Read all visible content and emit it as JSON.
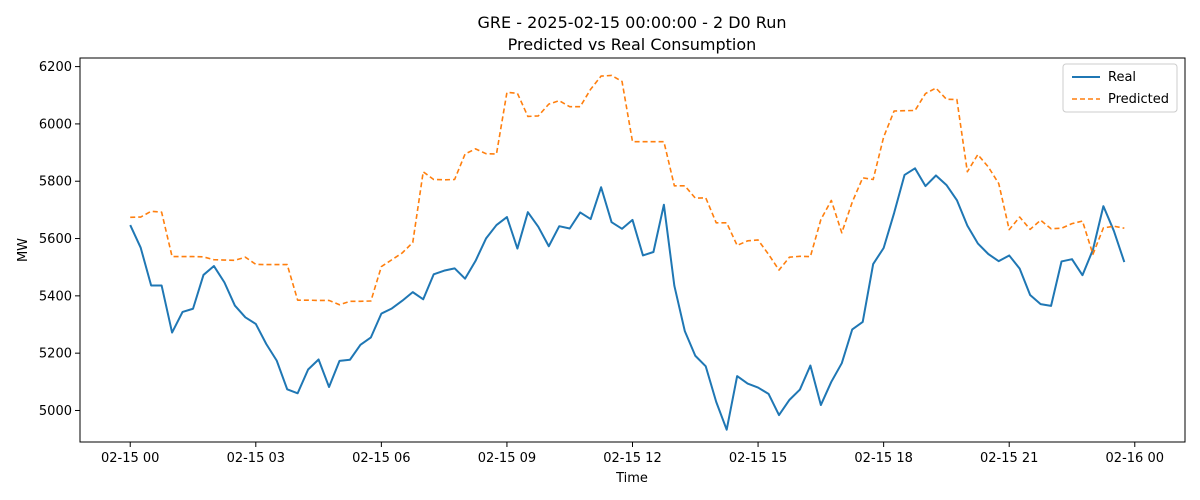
{
  "chart_data": {
    "type": "line",
    "title": "GRE - 2025-02-15 00:00:00 - 2 D0 Run",
    "subtitle": "Predicted vs Real Consumption",
    "xlabel": "Time",
    "ylabel": "MW",
    "x_unit": "hours since 2025-02-15 00",
    "x_tick_values": [
      0,
      3,
      6,
      9,
      12,
      15,
      18,
      21,
      24
    ],
    "x_tick_labels": [
      "02-15 00",
      "02-15 03",
      "02-15 06",
      "02-15 09",
      "02-15 12",
      "02-15 15",
      "02-15 18",
      "02-15 21",
      "02-16 00"
    ],
    "y_ticks": [
      5000,
      5200,
      5400,
      5600,
      5800,
      6000,
      6200
    ],
    "xlim": [
      -1.2,
      25.2
    ],
    "ylim": [
      4890,
      6230
    ],
    "grid": false,
    "legend_position": "top-right",
    "x_step_hours": 0.25,
    "series": [
      {
        "name": "Real",
        "color": "#1f77b4",
        "style": "solid",
        "values": [
          5647,
          5568,
          5436,
          5436,
          5272,
          5344,
          5355,
          5473,
          5504,
          5447,
          5366,
          5325,
          5302,
          5232,
          5174,
          5074,
          5060,
          5143,
          5178,
          5082,
          5173,
          5177,
          5229,
          5255,
          5338,
          5356,
          5383,
          5413,
          5388,
          5475,
          5488,
          5496,
          5460,
          5522,
          5600,
          5647,
          5675,
          5565,
          5692,
          5641,
          5573,
          5643,
          5635,
          5691,
          5668,
          5779,
          5657,
          5634,
          5665,
          5541,
          5553,
          5718,
          5435,
          5277,
          5191,
          5154,
          5030,
          4933,
          5120,
          5094,
          5080,
          5058,
          4984,
          5037,
          5073,
          5157,
          5019,
          5100,
          5165,
          5283,
          5309,
          5511,
          5567,
          5689,
          5822,
          5845,
          5783,
          5820,
          5787,
          5734,
          5645,
          5583,
          5546,
          5521,
          5541,
          5495,
          5403,
          5371,
          5365,
          5520,
          5528,
          5472,
          5561,
          5713,
          5627,
          5518
        ]
      },
      {
        "name": "Predicted",
        "color": "#ff7f0e",
        "style": "dashed",
        "values": [
          5674,
          5675,
          5695,
          5692,
          5537,
          5537,
          5537,
          5536,
          5526,
          5525,
          5524,
          5535,
          5510,
          5509,
          5509,
          5509,
          5385,
          5385,
          5384,
          5384,
          5369,
          5381,
          5381,
          5382,
          5502,
          5526,
          5550,
          5586,
          5833,
          5806,
          5805,
          5806,
          5895,
          5913,
          5896,
          5895,
          6110,
          6107,
          6026,
          6028,
          6069,
          6081,
          6060,
          6060,
          6121,
          6167,
          6169,
          6148,
          5938,
          5938,
          5938,
          5938,
          5784,
          5784,
          5741,
          5742,
          5655,
          5655,
          5576,
          5592,
          5595,
          5545,
          5490,
          5535,
          5538,
          5537,
          5666,
          5733,
          5620,
          5727,
          5812,
          5806,
          5954,
          6045,
          6046,
          6047,
          6106,
          6125,
          6086,
          6085,
          5833,
          5893,
          5850,
          5792,
          5631,
          5675,
          5632,
          5664,
          5634,
          5636,
          5652,
          5661,
          5545,
          5637,
          5643,
          5636
        ]
      }
    ]
  }
}
